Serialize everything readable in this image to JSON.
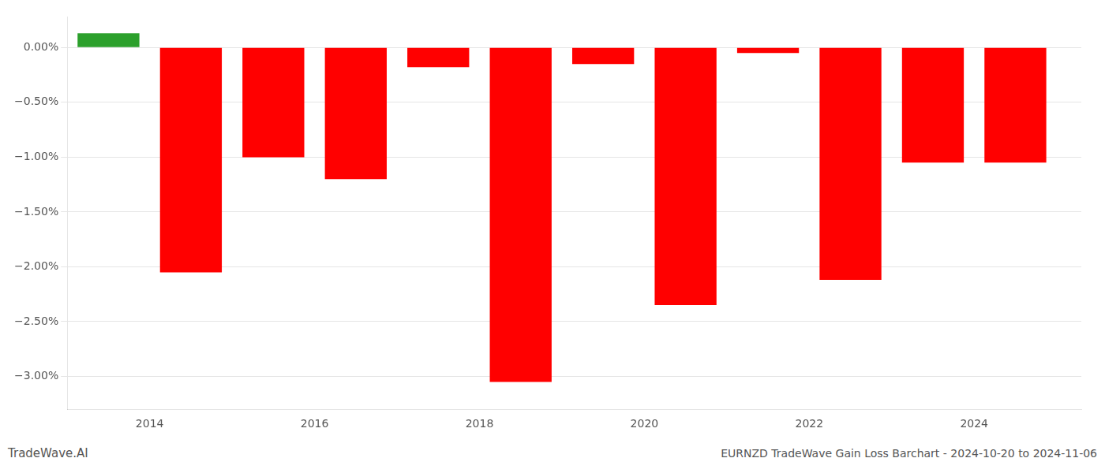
{
  "chart_data": {
    "type": "bar",
    "x": [
      2013.5,
      2014.5,
      2015.5,
      2016.5,
      2017.5,
      2018.5,
      2019.5,
      2020.5,
      2021.5,
      2022.5,
      2023.5,
      2024.5
    ],
    "values": [
      0.13,
      -2.05,
      -1.0,
      -1.2,
      -0.18,
      -3.05,
      -0.15,
      -2.35,
      -0.05,
      -2.12,
      -1.05,
      -1.05
    ],
    "colors": [
      "#2ca02c",
      "#ff0000",
      "#ff0000",
      "#ff0000",
      "#ff0000",
      "#ff0000",
      "#ff0000",
      "#ff0000",
      "#ff0000",
      "#ff0000",
      "#ff0000",
      "#ff0000"
    ],
    "xlim": [
      2013.0,
      2025.3
    ],
    "xticks": [
      2014,
      2016,
      2018,
      2020,
      2022,
      2024
    ],
    "ylim": [
      -3.3,
      0.28
    ],
    "yticks": [
      {
        "value": 0.0,
        "label": "0.00%"
      },
      {
        "value": -0.5,
        "label": "−0.50%"
      },
      {
        "value": -1.0,
        "label": "−1.00%"
      },
      {
        "value": -1.5,
        "label": "−1.50%"
      },
      {
        "value": -2.0,
        "label": "−2.00%"
      },
      {
        "value": -2.5,
        "label": "−2.50%"
      },
      {
        "value": -3.0,
        "label": "−3.00%"
      }
    ],
    "grid": true,
    "annotations": [
      "TradeWave.AI",
      "EURNZD TradeWave Gain Loss Barchart - 2024-10-20 to 2024-11-06"
    ]
  }
}
